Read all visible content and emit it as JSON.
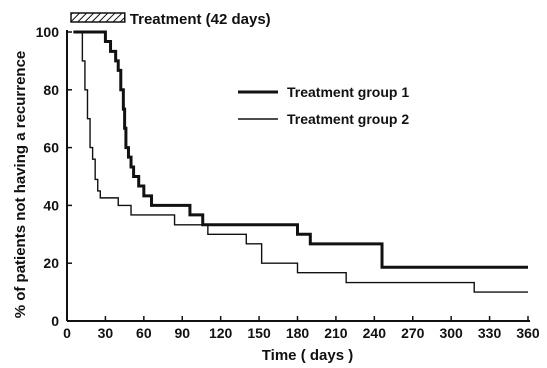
{
  "chart_data": {
    "type": "line",
    "step": true,
    "title": "",
    "xlabel": "Time ( days )",
    "ylabel": "% of patients not having a recurrence",
    "xlim": [
      0,
      360
    ],
    "ylim": [
      0,
      100
    ],
    "xticks": [
      0,
      30,
      60,
      90,
      120,
      150,
      180,
      210,
      240,
      270,
      300,
      330,
      360
    ],
    "yticks": [
      0,
      20,
      40,
      60,
      80,
      100
    ],
    "grid": false,
    "legend_position": "upper-right",
    "annotation": {
      "text": "Treatment (42 days)",
      "x_start": 0,
      "x_end": 42
    },
    "series": [
      {
        "name": "Treatment group 1",
        "line": "thick",
        "x": [
          5,
          16,
          30,
          34,
          38,
          40,
          42,
          44,
          45,
          46,
          48,
          50,
          52,
          56,
          60,
          66,
          70,
          82,
          96,
          104,
          106,
          180,
          190,
          246,
          360
        ],
        "y": [
          100,
          100,
          96.7,
          93.3,
          90,
          86.7,
          80,
          73.3,
          66.7,
          60,
          56.7,
          53.3,
          50,
          46.7,
          43.3,
          40,
          40,
          40,
          36.7,
          36.7,
          33.3,
          30,
          26.7,
          18.6,
          18.6
        ]
      },
      {
        "name": "Treatment group 2",
        "line": "thin",
        "x": [
          5,
          12,
          14,
          16,
          18,
          20,
          22,
          24,
          26,
          40,
          50,
          60,
          84,
          110,
          140,
          152,
          180,
          194,
          218,
          318,
          360
        ],
        "y": [
          100,
          90,
          80,
          70,
          60,
          56,
          49,
          45,
          42.6,
          40,
          36.7,
          36.7,
          33.3,
          30,
          26.7,
          20,
          16.7,
          16.7,
          13.3,
          10,
          10
        ]
      }
    ]
  }
}
